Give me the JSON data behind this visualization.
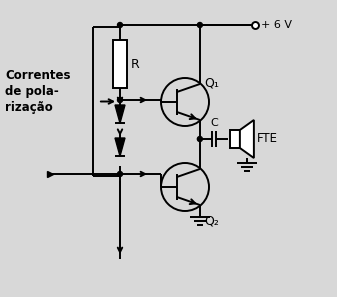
{
  "bg_color": "#d8d8d8",
  "line_color": "#000000",
  "label_correntes": "Correntes\nde pola-\nrização",
  "label_R": "R",
  "label_Q1": "Q₁",
  "label_Q2": "Q₂",
  "label_C": "C",
  "label_FTE": "FTE",
  "label_V": "+ 6 V",
  "fig_width": 3.37,
  "fig_height": 2.97,
  "dpi": 100
}
